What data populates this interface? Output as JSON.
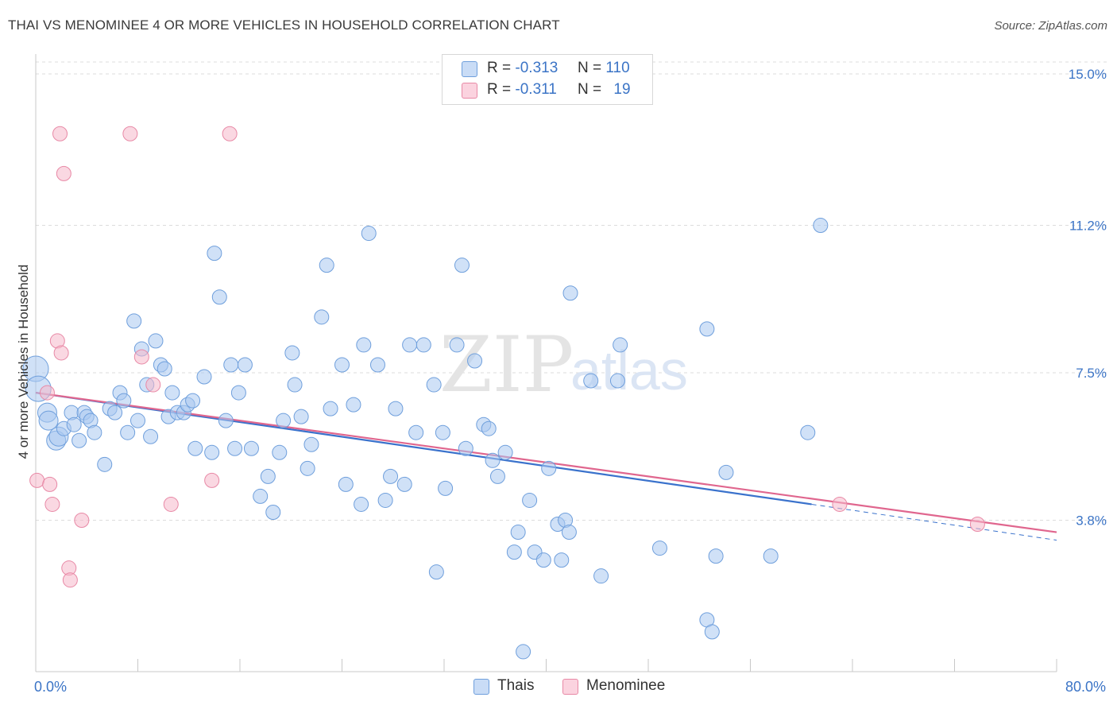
{
  "title": "THAI VS MENOMINEE 4 OR MORE VEHICLES IN HOUSEHOLD CORRELATION CHART",
  "source": "Source: ZipAtlas.com",
  "watermark": {
    "part1": "ZIP",
    "part2": "atlas"
  },
  "legend": {
    "rows": [
      {
        "r_label": "R =",
        "r_value": "-0.313",
        "n_label": "N =",
        "n_value": "110",
        "color": "#a9c8f0"
      },
      {
        "r_label": "R =",
        "r_value": "-0.311",
        "n_label": "N =",
        "n_value": "19",
        "color": "#f6b8ca"
      }
    ]
  },
  "bottom_legend": {
    "thais": "Thais",
    "menominee": "Menominee"
  },
  "chart_data": {
    "type": "scatter",
    "title": "THAI VS MENOMINEE 4 OR MORE VEHICLES IN HOUSEHOLD CORRELATION CHART",
    "xlabel": "",
    "ylabel": "4 or more Vehicles in Household",
    "xlim": [
      0,
      80
    ],
    "ylim": [
      0,
      15.3
    ],
    "x_ticks": [
      {
        "v": 0,
        "label": "0.0%"
      },
      {
        "v": 80,
        "label": "80.0%"
      }
    ],
    "y_ticks": [
      {
        "v": 3.8,
        "label": "3.8%"
      },
      {
        "v": 7.5,
        "label": "7.5%"
      },
      {
        "v": 11.2,
        "label": "11.2%"
      },
      {
        "v": 15.0,
        "label": "15.0%"
      }
    ],
    "grid": true,
    "legend_position": "top-center",
    "series": [
      {
        "name": "Thais",
        "color": "#a9c8f0",
        "stroke": "#6f9fdc",
        "line_color": "#3a72cc",
        "trend": {
          "x0": 0,
          "y0": 7.0,
          "x1": 60.8,
          "y1": 4.2,
          "dash_x1": 80,
          "dash_y1": 3.3
        },
        "points": [
          [
            0.0,
            7.6
          ],
          [
            0.2,
            7.1
          ],
          [
            0.9,
            6.5
          ],
          [
            1.0,
            6.3
          ],
          [
            1.6,
            5.8
          ],
          [
            1.8,
            5.9
          ],
          [
            2.2,
            6.1
          ],
          [
            2.8,
            6.5
          ],
          [
            3.0,
            6.2
          ],
          [
            3.4,
            5.8
          ],
          [
            3.8,
            6.5
          ],
          [
            4.0,
            6.4
          ],
          [
            4.3,
            6.3
          ],
          [
            4.6,
            6.0
          ],
          [
            5.4,
            5.2
          ],
          [
            5.8,
            6.6
          ],
          [
            6.2,
            6.5
          ],
          [
            6.6,
            7.0
          ],
          [
            6.9,
            6.8
          ],
          [
            7.2,
            6.0
          ],
          [
            7.7,
            8.8
          ],
          [
            8.0,
            6.3
          ],
          [
            8.3,
            8.1
          ],
          [
            8.7,
            7.2
          ],
          [
            9.0,
            5.9
          ],
          [
            9.4,
            8.3
          ],
          [
            9.8,
            7.7
          ],
          [
            10.1,
            7.6
          ],
          [
            10.4,
            6.4
          ],
          [
            10.7,
            7.0
          ],
          [
            11.1,
            6.5
          ],
          [
            11.6,
            6.5
          ],
          [
            11.9,
            6.7
          ],
          [
            12.3,
            6.8
          ],
          [
            12.5,
            5.6
          ],
          [
            13.2,
            7.4
          ],
          [
            13.8,
            5.5
          ],
          [
            14.0,
            10.5
          ],
          [
            14.4,
            9.4
          ],
          [
            14.9,
            6.3
          ],
          [
            15.3,
            7.7
          ],
          [
            15.6,
            5.6
          ],
          [
            15.9,
            7.0
          ],
          [
            16.4,
            7.7
          ],
          [
            16.9,
            5.6
          ],
          [
            17.6,
            4.4
          ],
          [
            18.2,
            4.9
          ],
          [
            18.6,
            4.0
          ],
          [
            19.1,
            5.5
          ],
          [
            19.4,
            6.3
          ],
          [
            20.1,
            8.0
          ],
          [
            20.3,
            7.2
          ],
          [
            20.8,
            6.4
          ],
          [
            21.3,
            5.1
          ],
          [
            21.6,
            5.7
          ],
          [
            22.4,
            8.9
          ],
          [
            22.8,
            10.2
          ],
          [
            23.1,
            6.6
          ],
          [
            24.0,
            7.7
          ],
          [
            24.3,
            4.7
          ],
          [
            24.9,
            6.7
          ],
          [
            25.5,
            4.2
          ],
          [
            25.7,
            8.2
          ],
          [
            26.1,
            11.0
          ],
          [
            26.8,
            7.7
          ],
          [
            27.4,
            4.3
          ],
          [
            27.8,
            4.9
          ],
          [
            28.2,
            6.6
          ],
          [
            28.9,
            4.7
          ],
          [
            29.3,
            8.2
          ],
          [
            29.8,
            6.0
          ],
          [
            30.4,
            8.2
          ],
          [
            31.2,
            7.2
          ],
          [
            31.4,
            2.5
          ],
          [
            31.9,
            6.0
          ],
          [
            32.1,
            4.6
          ],
          [
            33.0,
            8.2
          ],
          [
            33.4,
            10.2
          ],
          [
            33.7,
            5.6
          ],
          [
            34.4,
            7.8
          ],
          [
            35.1,
            6.2
          ],
          [
            35.5,
            6.1
          ],
          [
            35.8,
            5.3
          ],
          [
            36.2,
            4.9
          ],
          [
            36.8,
            5.5
          ],
          [
            37.5,
            3.0
          ],
          [
            37.8,
            3.5
          ],
          [
            38.2,
            0.5
          ],
          [
            38.7,
            4.3
          ],
          [
            39.1,
            3.0
          ],
          [
            39.8,
            2.8
          ],
          [
            40.2,
            5.1
          ],
          [
            40.9,
            3.7
          ],
          [
            41.2,
            2.8
          ],
          [
            41.5,
            3.8
          ],
          [
            41.8,
            3.5
          ],
          [
            41.9,
            9.5
          ],
          [
            43.5,
            7.3
          ],
          [
            44.3,
            2.4
          ],
          [
            45.6,
            7.3
          ],
          [
            45.8,
            8.2
          ],
          [
            48.9,
            3.1
          ],
          [
            52.6,
            1.3
          ],
          [
            53.0,
            1.0
          ],
          [
            53.3,
            2.9
          ],
          [
            54.1,
            5.0
          ],
          [
            57.6,
            2.9
          ],
          [
            60.5,
            6.0
          ],
          [
            61.5,
            11.2
          ],
          [
            52.6,
            8.6
          ]
        ]
      },
      {
        "name": "Menominee",
        "color": "#f6b8ca",
        "stroke": "#e889a6",
        "line_color": "#e0668e",
        "trend": {
          "x0": 0,
          "y0": 7.0,
          "x1": 80,
          "y1": 3.5
        },
        "points": [
          [
            0.1,
            4.8
          ],
          [
            0.9,
            7.0
          ],
          [
            1.1,
            4.7
          ],
          [
            1.3,
            4.2
          ],
          [
            1.7,
            8.3
          ],
          [
            1.9,
            13.5
          ],
          [
            2.0,
            8.0
          ],
          [
            2.2,
            12.5
          ],
          [
            2.6,
            2.6
          ],
          [
            2.7,
            2.3
          ],
          [
            3.6,
            3.8
          ],
          [
            7.4,
            13.5
          ],
          [
            8.3,
            7.9
          ],
          [
            9.2,
            7.2
          ],
          [
            10.6,
            4.2
          ],
          [
            13.8,
            4.8
          ],
          [
            15.2,
            13.5
          ],
          [
            63.0,
            4.2
          ],
          [
            73.8,
            3.7
          ]
        ]
      }
    ]
  }
}
